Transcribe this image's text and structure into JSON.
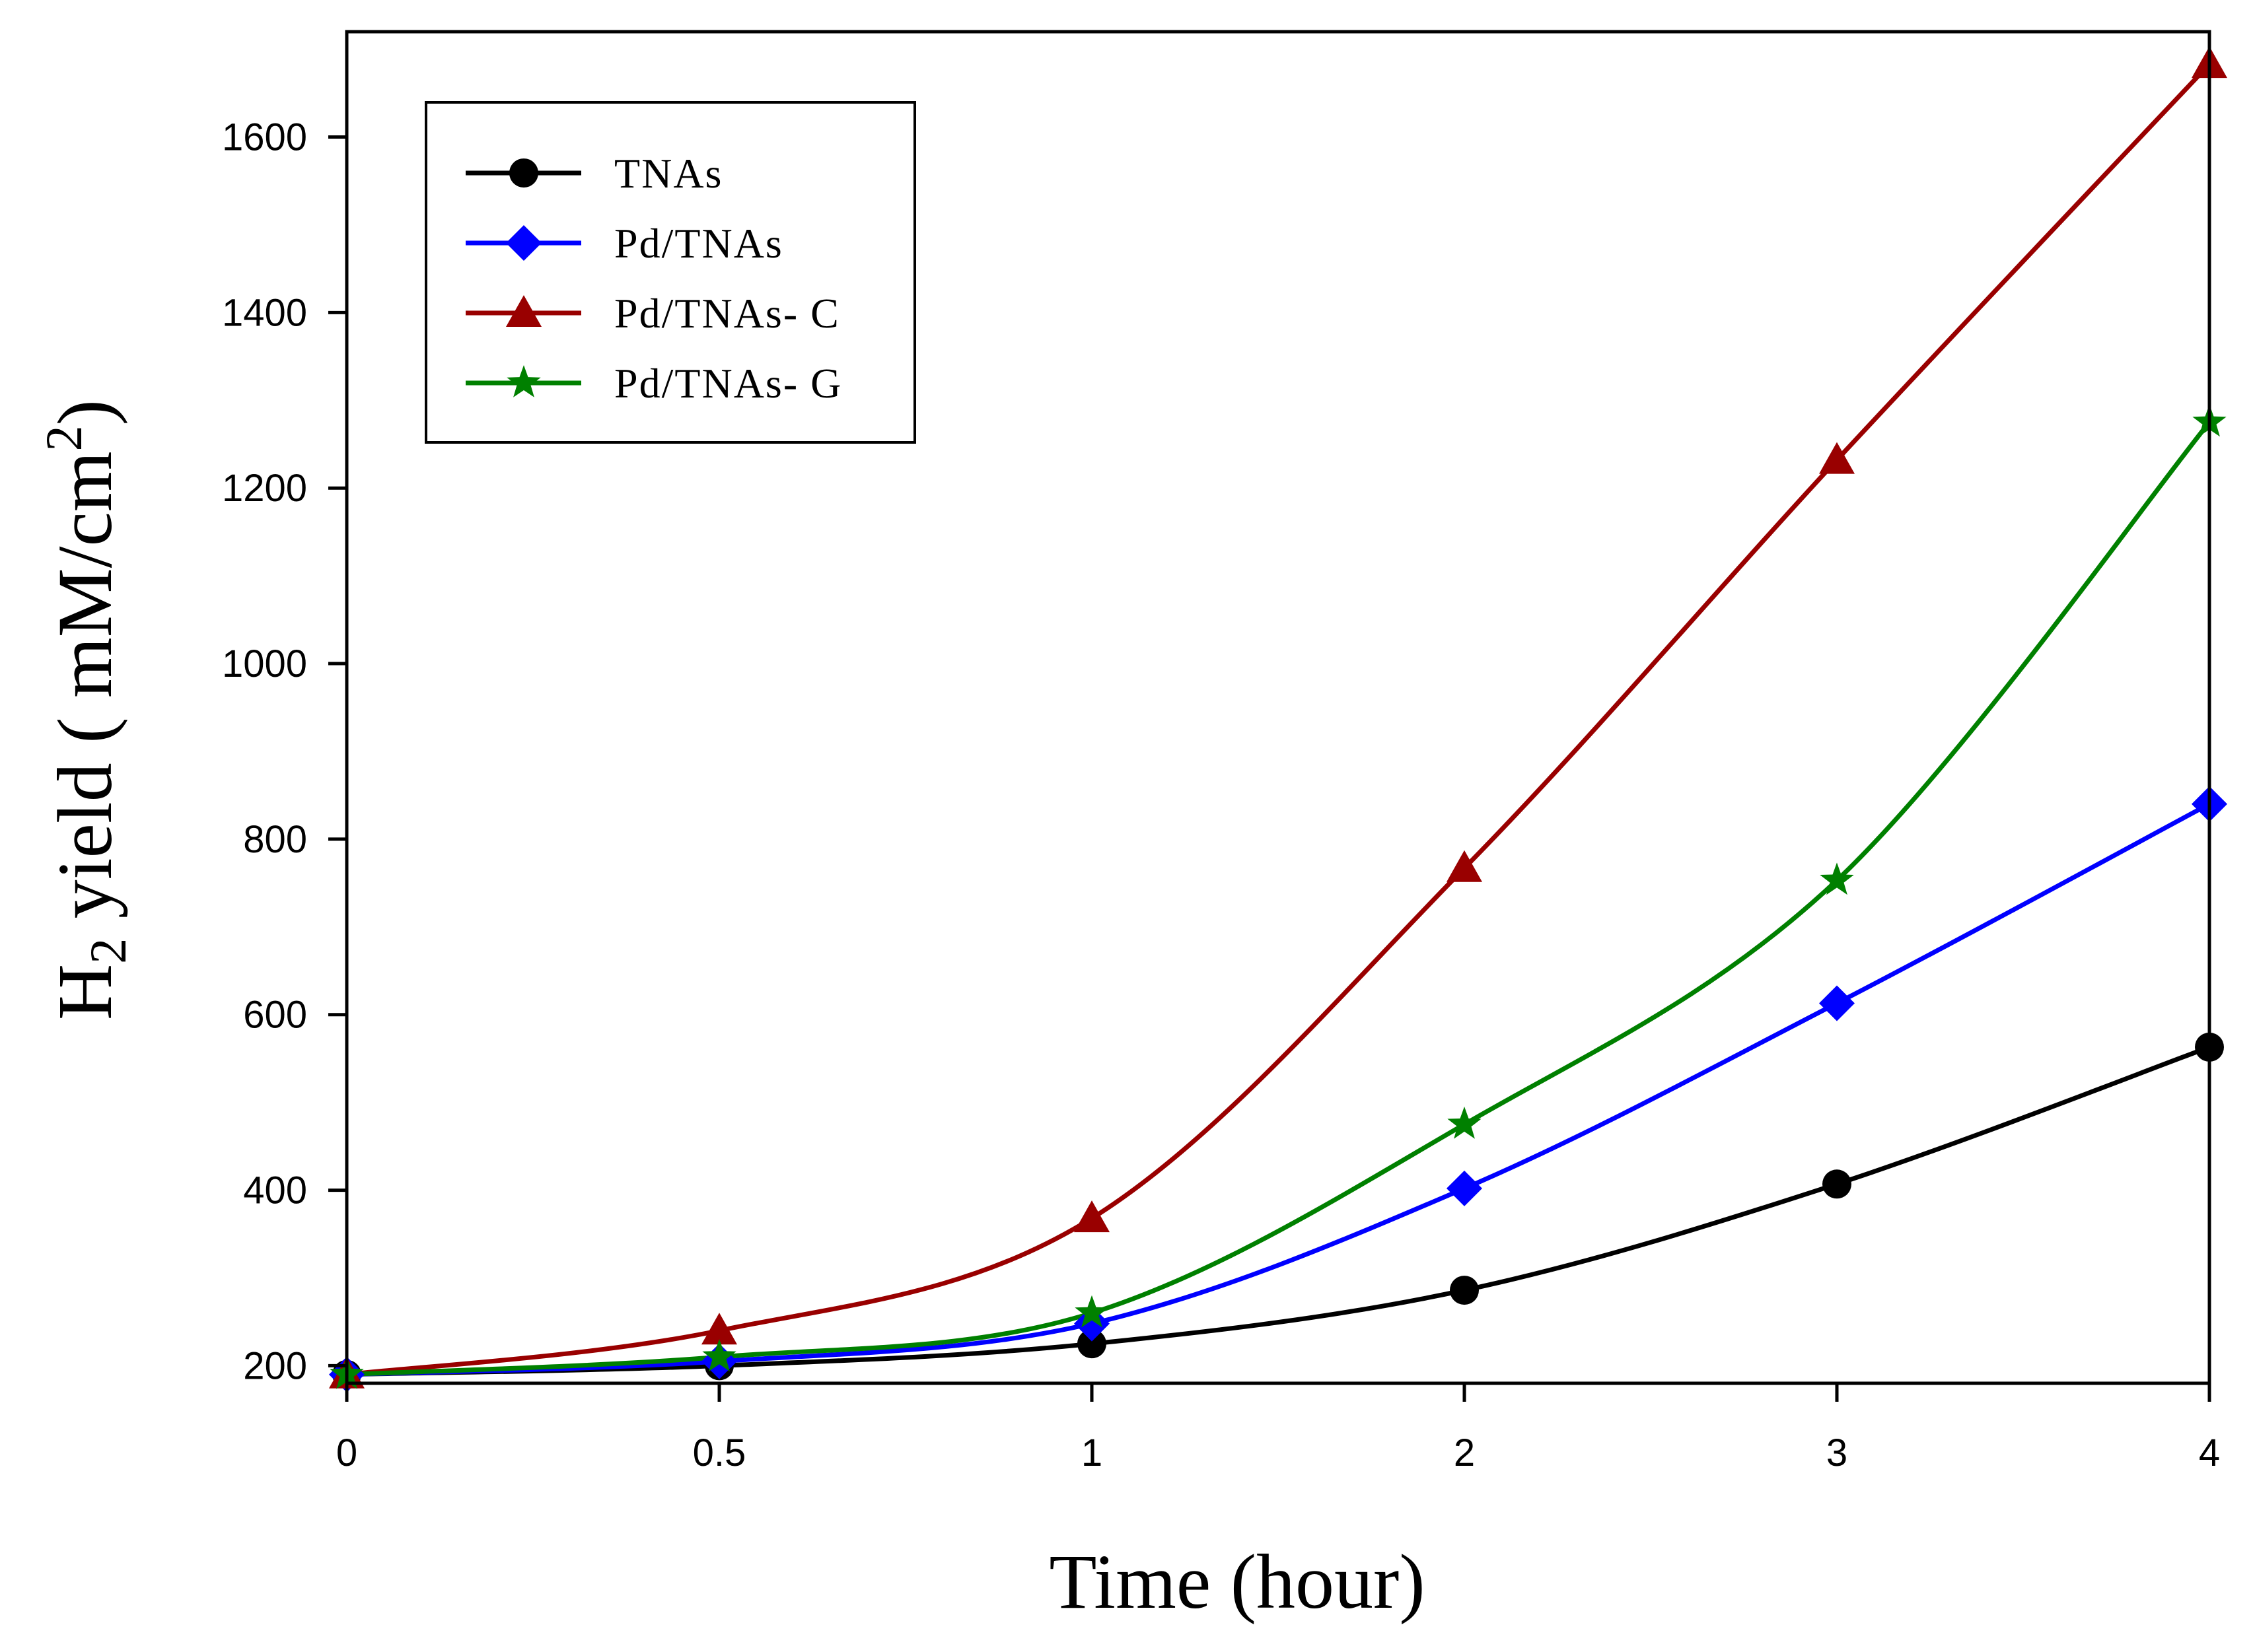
{
  "chart_data": {
    "type": "line",
    "title": "",
    "xlabel": "Time (hour)",
    "ylabel": {
      "prefix": "H",
      "subscript": "2",
      "middle": " yield ( mM/cm",
      "superscript": "2",
      "suffix": ")"
    },
    "categories": [
      "0",
      "0.5",
      "1",
      "2",
      "3",
      "4"
    ],
    "x_ticks": [
      "0",
      "0.5",
      "1",
      "2",
      "3",
      "4"
    ],
    "y_ticks": [
      200,
      400,
      600,
      800,
      1000,
      1200,
      1400,
      1600
    ],
    "ylim": [
      180,
      1720
    ],
    "grid": false,
    "legend_position": "top-left",
    "series": [
      {
        "name": "TNAs",
        "color": "#000000",
        "marker": "circle",
        "values": [
          190,
          200,
          225,
          286,
          407,
          563
        ]
      },
      {
        "name": "Pd/TNAs",
        "color": "#0000ff",
        "marker": "diamond",
        "values": [
          190,
          205,
          248,
          402,
          613,
          840
        ]
      },
      {
        "name": "Pd/TNAs- C",
        "color": "#990000",
        "marker": "triangle",
        "values": [
          190,
          240,
          368,
          767,
          1232,
          1683
        ]
      },
      {
        "name": "Pd/TNAs- G",
        "color": "#008000",
        "marker": "star",
        "values": [
          190,
          210,
          260,
          475,
          753,
          1275
        ]
      }
    ]
  }
}
